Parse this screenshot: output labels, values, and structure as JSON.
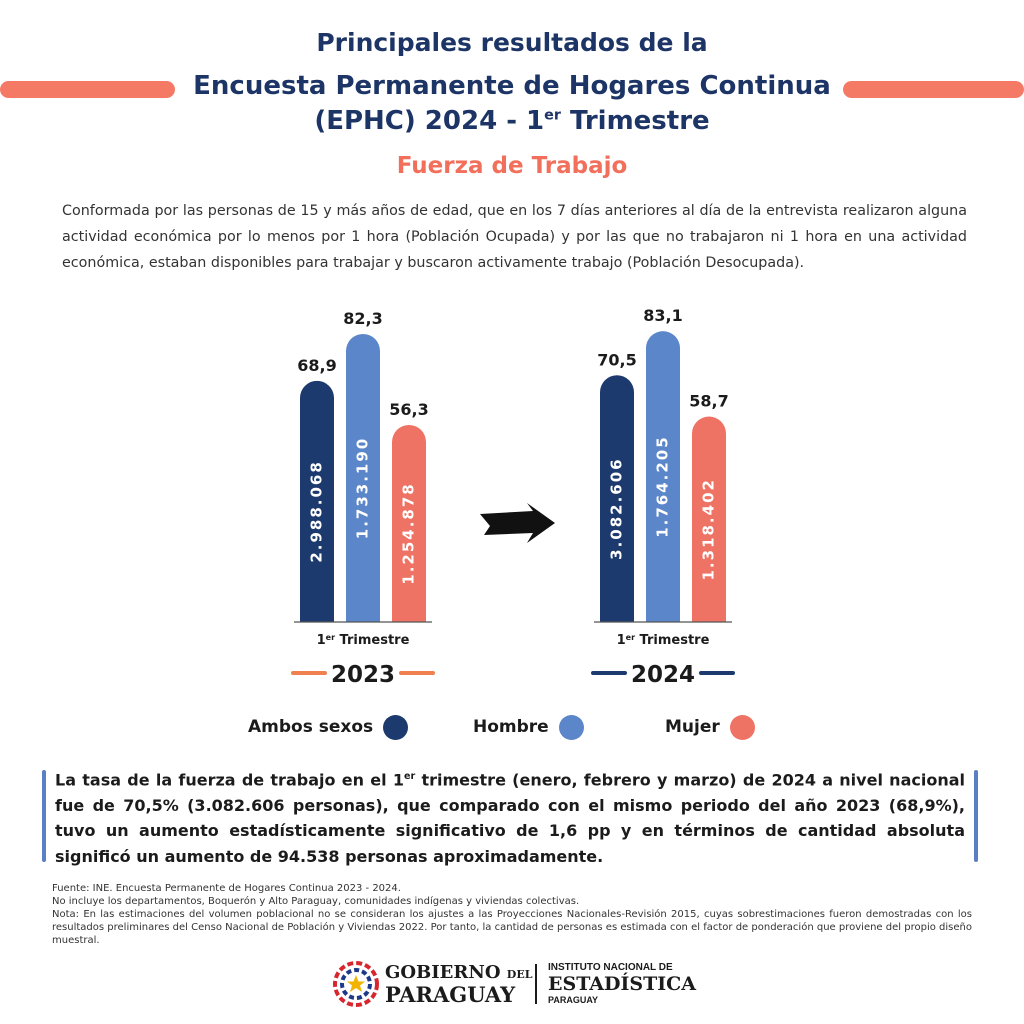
{
  "header": {
    "line1": "Principales resultados de la",
    "line2": "Encuesta Permanente de Hogares Continua",
    "line3_pre": "(EPHC) 2024 - 1",
    "line3_sup": "er",
    "line3_post": " Trimestre",
    "accent_color": "#f47a66",
    "title_color": "#1d3466"
  },
  "subtitle": "Fuerza de Trabajo",
  "description": "Conformada por las personas de 15 y más años de edad, que en los 7 días anteriores al día de la entrevista realizaron alguna actividad económica por lo menos por 1 hora (Población Ocupada) y por las que no trabajaron ni 1 hora en una actividad económica, estaban disponibles para trabajar y buscaron activamente trabajo (Población Desocupada).",
  "chart_data": {
    "type": "bar",
    "colors": {
      "Ambos sexos": "#1d3a6e",
      "Hombre": "#5b86c9",
      "Mujer": "#ef7364"
    },
    "period_label_base": "1",
    "period_label_sup": "er",
    "period_label_rest": " Trimestre",
    "groups": [
      {
        "year": "2023",
        "year_line_color": "#f08050",
        "series": [
          {
            "name": "Ambos sexos",
            "value": 68.9,
            "value_label": "68,9",
            "persons": "2.988.068"
          },
          {
            "name": "Hombre",
            "value": 82.3,
            "value_label": "82,3",
            "persons": "1.733.190"
          },
          {
            "name": "Mujer",
            "value": 56.3,
            "value_label": "56,3",
            "persons": "1.254.878"
          }
        ]
      },
      {
        "year": "2024",
        "year_line_color": "#1d3a6e",
        "series": [
          {
            "name": "Ambos sexos",
            "value": 70.5,
            "value_label": "70,5",
            "persons": "3.082.606"
          },
          {
            "name": "Hombre",
            "value": 83.1,
            "value_label": "83,1",
            "persons": "1.764.205"
          },
          {
            "name": "Mujer",
            "value": 58.7,
            "value_label": "58,7",
            "persons": "1.318.402"
          }
        ]
      }
    ]
  },
  "legend": [
    {
      "label": "Ambos sexos",
      "color": "#1d3a6e"
    },
    {
      "label": "Hombre",
      "color": "#5b86c9"
    },
    {
      "label": "Mujer",
      "color": "#ef7364"
    }
  ],
  "summary": {
    "part1": "La tasa de la fuerza de trabajo en el 1",
    "sup": "er",
    "part2": " trimestre (enero, febrero y marzo) de 2024 a nivel nacional fue de 70,5% (3.082.606 personas), que comparado con el mismo periodo del año 2023 (68,9%), tuvo un aumento estadísticamente significativo de 1,6 pp y en términos de cantidad absoluta significó un aumento de 94.538 personas aproximadamente."
  },
  "notes": {
    "source": "Fuente: INE. Encuesta Permanente de Hogares Continua 2023 - 2024.",
    "exclusion": "No incluye los departamentos, Boquerón y Alto Paraguay, comunidades indígenas y viviendas colectivas.",
    "note": "Nota: En las estimaciones del volumen poblacional no se consideran los ajustes a las Proyecciones Nacionales-Revisión 2015, cuyas sobrestimaciones fueron demostradas con los resultados preliminares del Censo Nacional de Población y Viviendas 2022. Por tanto, la cantidad de personas es estimada con el factor de ponderación que proviene del propio diseño muestral."
  },
  "logos": {
    "gobierno_top": "GOBIERNO",
    "gobierno_del": "DEL",
    "gobierno_bottom": "PARAGUAY",
    "ine_top": "INSTITUTO NACIONAL DE",
    "ine_mid": "ESTADÍSTICA",
    "ine_bottom": "PARAGUAY"
  }
}
